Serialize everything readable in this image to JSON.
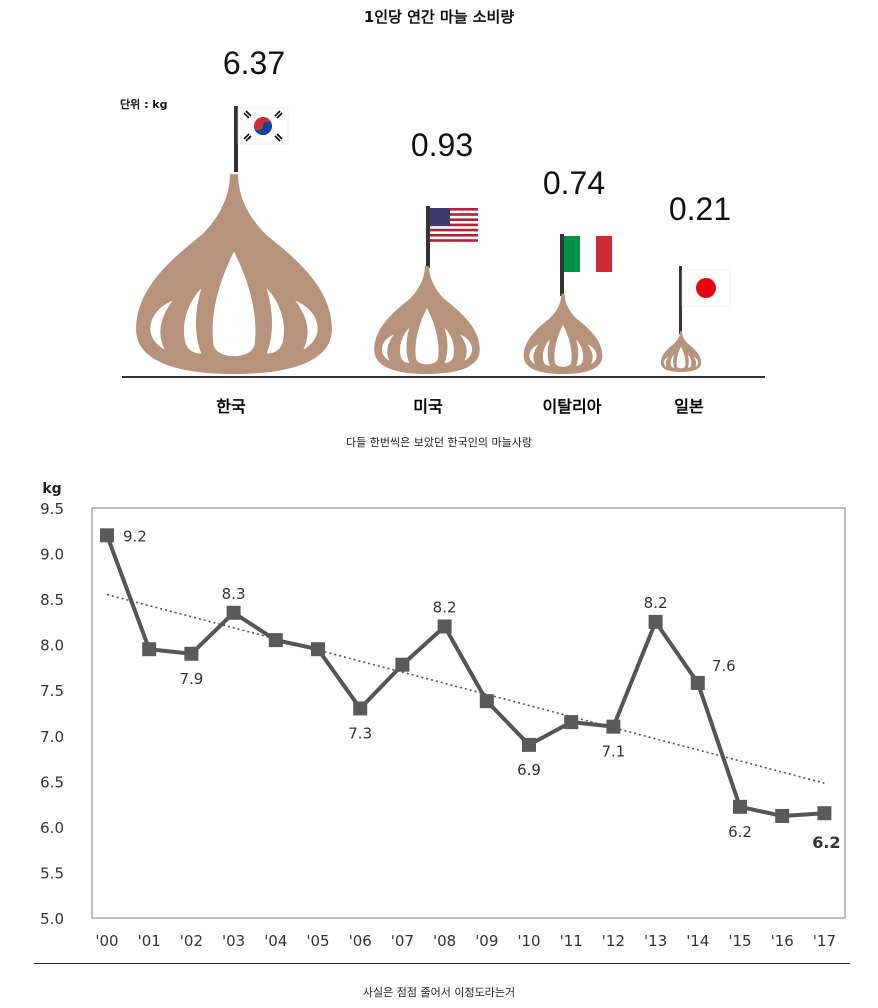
{
  "infographic": {
    "title": "1인당 연간 마늘 소비량",
    "unit": "단위 : kg",
    "caption": "다들 한번씩은 보았던 한국인의 마늘사랑",
    "colors": {
      "garlic": "#b8937b",
      "baseline": "#333333"
    },
    "countries": [
      {
        "name": "한국",
        "value": 6.37,
        "flag": "korea-flag"
      },
      {
        "name": "미국",
        "value": 0.93,
        "flag": "usa-flag"
      },
      {
        "name": "이탈리아",
        "value": 0.74,
        "flag": "italy-flag"
      },
      {
        "name": "일본",
        "value": 0.21,
        "flag": "japan-flag"
      }
    ]
  },
  "chart_data": {
    "type": "line",
    "ylabel": "kg",
    "ylim": [
      5.0,
      9.5
    ],
    "yticks": [
      "5.0",
      "5.5",
      "6.0",
      "6.5",
      "7.0",
      "7.5",
      "8.0",
      "8.5",
      "9.0",
      "9.5"
    ],
    "categories": [
      "'00",
      "'01",
      "'02",
      "'03",
      "'04",
      "'05",
      "'06",
      "'07",
      "'08",
      "'09",
      "'10",
      "'11",
      "'12",
      "'13",
      "'14",
      "'15",
      "'16",
      "'17"
    ],
    "series": [
      {
        "values": [
          9.2,
          7.95,
          7.9,
          8.35,
          8.05,
          7.95,
          7.3,
          7.78,
          8.2,
          7.38,
          6.9,
          7.15,
          7.1,
          8.25,
          7.58,
          6.22,
          6.12,
          6.15
        ]
      }
    ],
    "trendline": {
      "start": 8.55,
      "end": 6.48,
      "style": "dotted"
    },
    "data_labels": [
      {
        "index": 0,
        "text": "9.2"
      },
      {
        "index": 2,
        "text": "7.9"
      },
      {
        "index": 3,
        "text": "8.3"
      },
      {
        "index": 6,
        "text": "7.3"
      },
      {
        "index": 8,
        "text": "8.2"
      },
      {
        "index": 10,
        "text": "6.9"
      },
      {
        "index": 12,
        "text": "7.1"
      },
      {
        "index": 13,
        "text": "8.2"
      },
      {
        "index": 14,
        "text": "7.6"
      },
      {
        "index": 15,
        "text": "6.2"
      },
      {
        "index": 17,
        "text": "6.2"
      }
    ],
    "grid": false,
    "colors": {
      "line": "#555555",
      "marker": "#5a5a5a",
      "trend": "#555555"
    },
    "caption": "사실은 점점 줄어서 이정도라는거"
  }
}
